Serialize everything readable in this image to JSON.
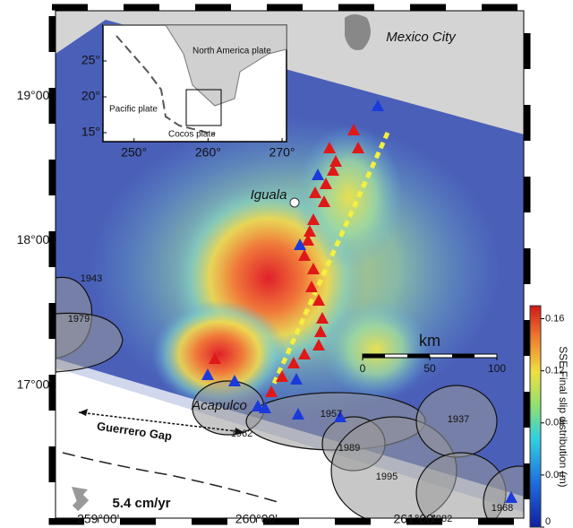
{
  "map": {
    "xlim": [
      258.73,
      261.69
    ],
    "ylim": [
      16.08,
      19.59
    ],
    "xticks": [
      {
        "value": 259,
        "label": "259°00'"
      },
      {
        "value": 260,
        "label": "260°00'"
      },
      {
        "value": 261,
        "label": "261°00'"
      }
    ],
    "yticks": [
      {
        "value": 17,
        "label": "17°00'"
      },
      {
        "value": 18,
        "label": "18°00'"
      },
      {
        "value": 19,
        "label": "19°00'"
      }
    ]
  },
  "labels": {
    "mexico_city": "Mexico City",
    "iguala": "Iguala",
    "acapulco": "Acapulco",
    "guerrero_gap": "Guerrero Gap",
    "velocity": "5.4 cm/yr"
  },
  "earthquakes": [
    "1943",
    "1979",
    "1957",
    "1962",
    "1989",
    "1937",
    "1995",
    "1982",
    "1968"
  ],
  "inset": {
    "xlim": [
      245.8,
      270.6
    ],
    "ylim": [
      13.75,
      30
    ],
    "xticks": [
      {
        "value": 250,
        "label": "250°"
      },
      {
        "value": 260,
        "label": "260°"
      },
      {
        "value": 270,
        "label": "270°"
      }
    ],
    "yticks": [
      {
        "value": 15,
        "label": "15°"
      },
      {
        "value": 20,
        "label": "20°"
      },
      {
        "value": 25,
        "label": "25°"
      }
    ],
    "plates": [
      "North America plate",
      "Pacific plate",
      "Cocos plate"
    ]
  },
  "scale_bar": {
    "label": "km",
    "lim": [
      0,
      100
    ],
    "ticks": [
      0,
      50,
      100
    ]
  },
  "colorbar": {
    "label": "SSE Final slip distribution (m)",
    "lim": [
      0,
      0.17
    ],
    "ticks": [
      0,
      0.04,
      0.08,
      0.12,
      0.16
    ]
  }
}
